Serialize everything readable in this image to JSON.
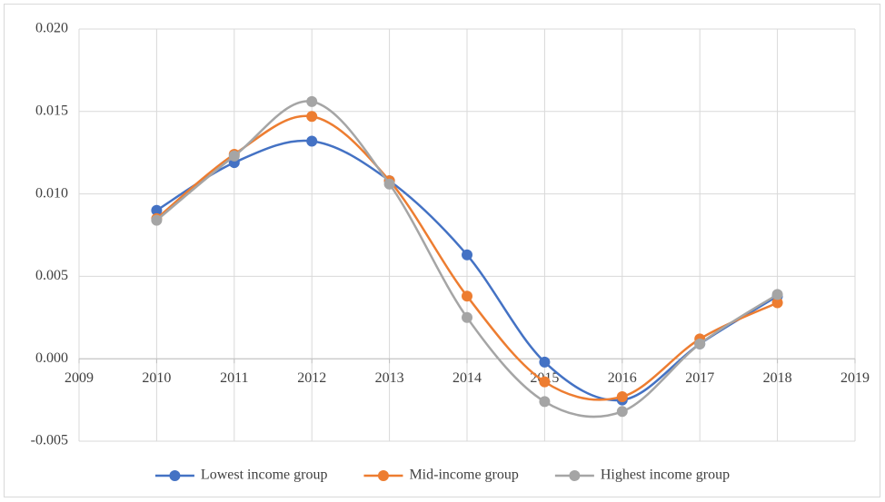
{
  "chart_data": {
    "type": "line",
    "smooth": true,
    "grid": true,
    "x": [
      2010,
      2011,
      2012,
      2013,
      2014,
      2015,
      2016,
      2017,
      2018
    ],
    "xlim": [
      2009,
      2019
    ],
    "xticks": [
      2009,
      2010,
      2011,
      2012,
      2013,
      2014,
      2015,
      2016,
      2017,
      2018,
      2019
    ],
    "ylim": [
      -0.005,
      0.02
    ],
    "yticks": [
      {
        "value": -0.005,
        "label": "-0.005"
      },
      {
        "value": 0,
        "label": "0.000"
      },
      {
        "value": 0.005,
        "label": "0.005"
      },
      {
        "value": 0.01,
        "label": "0.010"
      },
      {
        "value": 0.015,
        "label": "0.015"
      },
      {
        "value": 0.02,
        "label": "0.020"
      }
    ],
    "legend": "bottom",
    "series": [
      {
        "name": "Lowest income group",
        "color": "#4472c4",
        "values": [
          0.009,
          0.0119,
          0.0132,
          0.0108,
          0.0063,
          -0.0002,
          -0.0025,
          0.0009,
          0.0038
        ]
      },
      {
        "name": "Mid-income group",
        "color": "#ed7d31",
        "values": [
          0.0085,
          0.0124,
          0.0147,
          0.0108,
          0.0038,
          -0.0014,
          -0.0023,
          0.0012,
          0.0034
        ]
      },
      {
        "name": "Highest income group",
        "color": "#a5a5a5",
        "values": [
          0.0084,
          0.0123,
          0.0156,
          0.0106,
          0.0025,
          -0.0026,
          -0.0032,
          0.0009,
          0.0039
        ]
      }
    ]
  }
}
